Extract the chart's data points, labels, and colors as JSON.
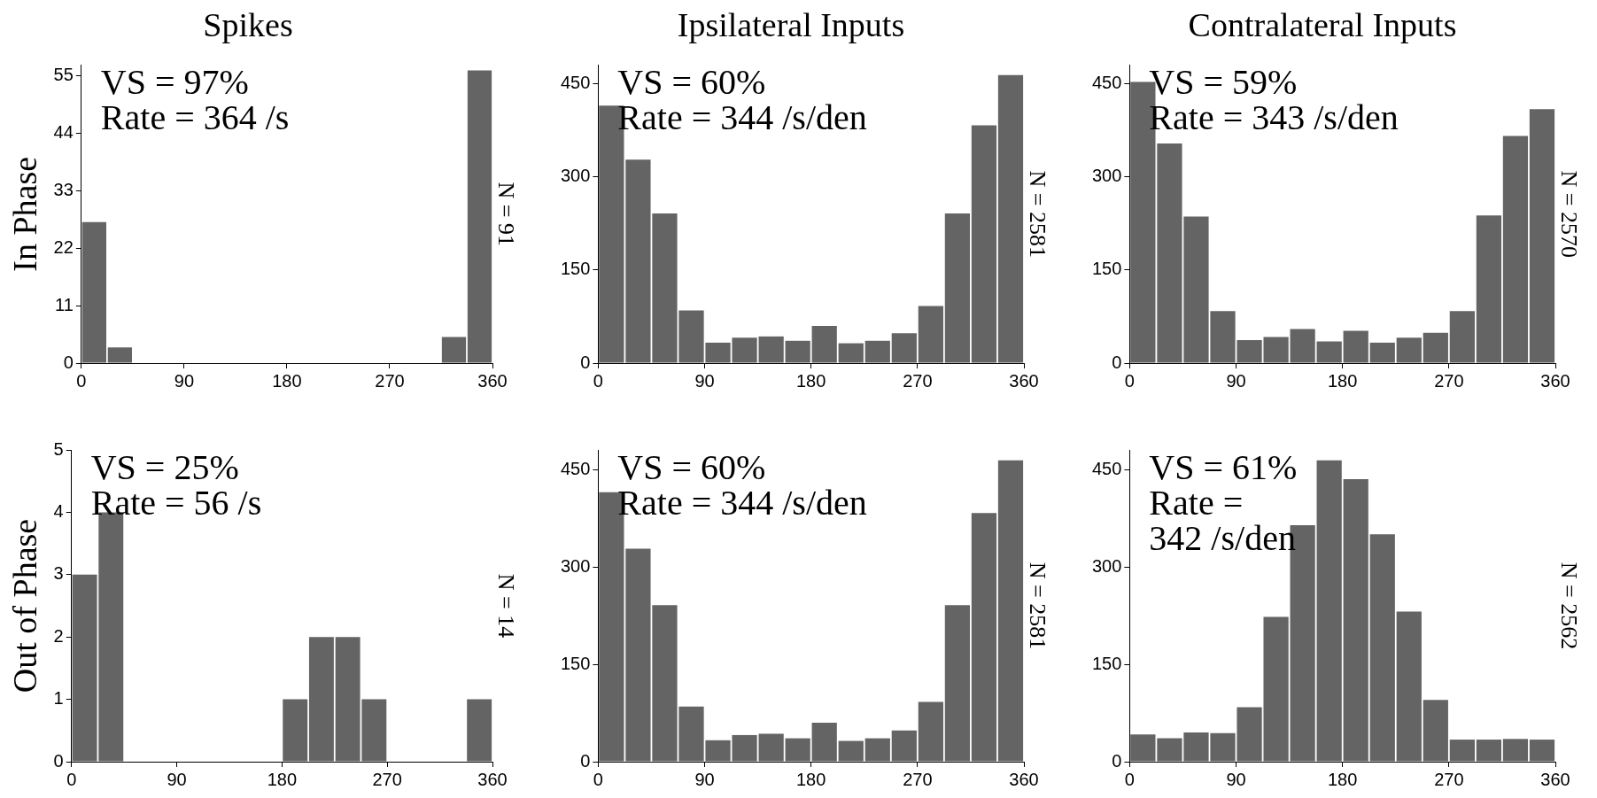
{
  "chart_data": [
    {
      "type": "histogram",
      "title": "Spikes",
      "ylabel": "In Phase",
      "y2label": "N = 91",
      "annotations": [
        "VS = 97%",
        "Rate = 364 /s"
      ],
      "bins": [
        0,
        22.5,
        45,
        67.5,
        90,
        112.5,
        135,
        157.5,
        180,
        202.5,
        225,
        247.5,
        270,
        292.5,
        315,
        337.5,
        360
      ],
      "values": [
        27,
        3,
        0,
        0,
        0,
        0,
        0,
        0,
        0,
        0,
        0,
        0,
        0,
        0,
        5,
        56
      ],
      "color": "#646464",
      "xlim": [
        0,
        360
      ],
      "xticks": [
        0,
        90,
        180,
        270,
        360
      ],
      "ylim": [
        0,
        57
      ],
      "yticks": [
        0,
        11,
        22,
        33,
        44,
        55
      ]
    },
    {
      "type": "histogram",
      "title": "Ipsilateral Inputs",
      "y2label": "N = 2581",
      "annotations": [
        "VS = 60%",
        "Rate = 344 /s/den"
      ],
      "bins": [
        0,
        22.5,
        45,
        67.5,
        90,
        112.5,
        135,
        157.5,
        180,
        202.5,
        225,
        247.5,
        270,
        292.5,
        315,
        337.5,
        360
      ],
      "values": [
        415,
        328,
        241,
        85,
        33,
        41,
        43,
        36,
        60,
        32,
        36,
        48,
        92,
        241,
        383,
        464
      ],
      "color": "#646464",
      "xlim": [
        0,
        360
      ],
      "xticks": [
        0,
        90,
        180,
        270,
        360
      ],
      "ylim": [
        0,
        480
      ],
      "yticks": [
        0,
        150,
        300,
        450
      ]
    },
    {
      "type": "histogram",
      "title": "Contralateral Inputs",
      "y2label": "N = 2570",
      "annotations": [
        "VS = 59%",
        "Rate = 343 /s/den"
      ],
      "bins": [
        0,
        22.5,
        45,
        67.5,
        90,
        112.5,
        135,
        157.5,
        180,
        202.5,
        225,
        247.5,
        270,
        292.5,
        315,
        337.5,
        360
      ],
      "values": [
        453,
        354,
        236,
        84,
        37,
        42,
        55,
        35,
        52,
        33,
        41,
        49,
        84,
        238,
        366,
        409
      ],
      "color": "#646464",
      "xlim": [
        0,
        360
      ],
      "xticks": [
        0,
        90,
        180,
        270,
        360
      ],
      "ylim": [
        0,
        480
      ],
      "yticks": [
        0,
        150,
        300,
        450
      ]
    },
    {
      "type": "histogram",
      "ylabel": "Out of Phase",
      "y2label": "N = 14",
      "annotations": [
        "VS = 25%",
        "Rate = 56 /s"
      ],
      "bins": [
        0,
        22.5,
        45,
        67.5,
        90,
        112.5,
        135,
        157.5,
        180,
        202.5,
        225,
        247.5,
        270,
        292.5,
        315,
        337.5,
        360
      ],
      "values": [
        3,
        4,
        0,
        0,
        0,
        0,
        0,
        0,
        1,
        2,
        2,
        1,
        0,
        0,
        0,
        1
      ],
      "color": "#646464",
      "xlim": [
        0,
        360
      ],
      "xticks": [
        0,
        90,
        180,
        270,
        360
      ],
      "ylim": [
        0,
        5
      ],
      "yticks": [
        0,
        1,
        2,
        3,
        4,
        5
      ]
    },
    {
      "type": "histogram",
      "y2label": "N = 2581",
      "annotations": [
        "VS = 60%",
        "Rate = 344 /s/den"
      ],
      "bins": [
        0,
        22.5,
        45,
        67.5,
        90,
        112.5,
        135,
        157.5,
        180,
        202.5,
        225,
        247.5,
        270,
        292.5,
        315,
        337.5,
        360
      ],
      "values": [
        415,
        328,
        241,
        85,
        33,
        41,
        43,
        36,
        60,
        32,
        36,
        48,
        92,
        241,
        383,
        464
      ],
      "color": "#646464",
      "xlim": [
        0,
        360
      ],
      "xticks": [
        0,
        90,
        180,
        270,
        360
      ],
      "ylim": [
        0,
        480
      ],
      "yticks": [
        0,
        150,
        300,
        450
      ]
    },
    {
      "type": "histogram",
      "y2label": "N = 2562",
      "annotations": [
        "VS = 61%",
        "Rate = 342 /s/den"
      ],
      "bins": [
        0,
        22.5,
        45,
        67.5,
        90,
        112.5,
        135,
        157.5,
        180,
        202.5,
        225,
        247.5,
        270,
        292.5,
        315,
        337.5,
        360
      ],
      "values": [
        42,
        36,
        45,
        44,
        84,
        223,
        364,
        464,
        435,
        350,
        231,
        95,
        34,
        34,
        35,
        34
      ],
      "color": "#646464",
      "xlim": [
        0,
        360
      ],
      "xticks": [
        0,
        90,
        180,
        270,
        360
      ],
      "ylim": [
        0,
        480
      ],
      "yticks": [
        0,
        150,
        300,
        450
      ]
    }
  ]
}
